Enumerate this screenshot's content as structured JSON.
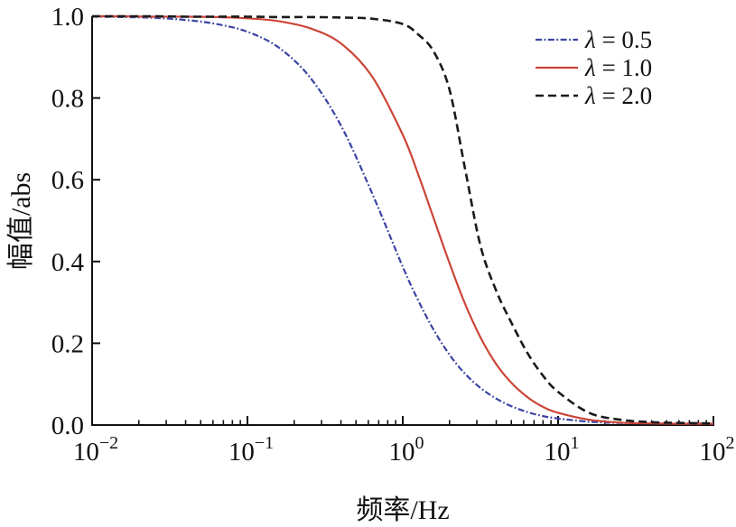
{
  "chart_data": {
    "type": "line",
    "title": "",
    "xlabel": "频率/Hz",
    "ylabel": "幅值/abs",
    "x_scale": "log",
    "xlim": [
      0.01,
      100
    ],
    "ylim": [
      0.0,
      1.0
    ],
    "grid": false,
    "legend_position": "upper right",
    "axis_color": "#111111",
    "x_ticks": [
      {
        "base": "10",
        "exp": "−2",
        "value": 0.01
      },
      {
        "base": "10",
        "exp": "−1",
        "value": 0.1
      },
      {
        "base": "10",
        "exp": "0",
        "value": 1
      },
      {
        "base": "10",
        "exp": "1",
        "value": 10
      },
      {
        "base": "10",
        "exp": "2",
        "value": 100
      }
    ],
    "y_ticks": [
      {
        "label": "0.0",
        "value": 0.0
      },
      {
        "label": "0.2",
        "value": 0.2
      },
      {
        "label": "0.4",
        "value": 0.4
      },
      {
        "label": "0.6",
        "value": 0.6
      },
      {
        "label": "0.8",
        "value": 0.8
      },
      {
        "label": "1.0",
        "value": 1.0
      }
    ],
    "x": [
      0.01,
      0.0158,
      0.0251,
      0.0398,
      0.0631,
      0.1,
      0.158,
      0.251,
      0.398,
      0.631,
      1,
      1.26,
      1.58,
      2.0,
      2.51,
      3.16,
      3.98,
      5.01,
      6.31,
      7.94,
      10,
      15.8,
      25.1,
      39.8,
      63.1,
      100
    ],
    "series": [
      {
        "name": "λ = 0.5",
        "legend_symbol": "λ",
        "legend_rest": " = 0.5",
        "color": "#3a44a4",
        "style": "dashdot",
        "values": [
          0.999,
          0.998,
          0.996,
          0.991,
          0.981,
          0.962,
          0.924,
          0.852,
          0.734,
          0.569,
          0.387,
          0.304,
          0.233,
          0.172,
          0.126,
          0.091,
          0.065,
          0.046,
          0.032,
          0.022,
          0.016,
          0.008,
          0.005,
          0.004,
          0.004,
          0.004
        ]
      },
      {
        "name": "λ = 1.0",
        "legend_symbol": "λ",
        "legend_rest": " = 1.0",
        "color": "#cc4538",
        "style": "solid",
        "values": [
          1.0,
          1.0,
          0.999,
          0.999,
          0.998,
          0.995,
          0.988,
          0.971,
          0.934,
          0.854,
          0.71,
          0.612,
          0.506,
          0.396,
          0.298,
          0.215,
          0.15,
          0.103,
          0.069,
          0.045,
          0.03,
          0.013,
          0.006,
          0.004,
          0.003,
          0.003
        ]
      },
      {
        "name": "λ = 2.0",
        "legend_symbol": "λ",
        "legend_rest": " = 2.0",
        "color": "#1a1a1a",
        "style": "dashed",
        "values": [
          1.0,
          1.0,
          1.0,
          0.999,
          0.999,
          0.999,
          0.998,
          0.998,
          0.997,
          0.994,
          0.981,
          0.955,
          0.914,
          0.82,
          0.63,
          0.44,
          0.33,
          0.25,
          0.178,
          0.122,
          0.081,
          0.03,
          0.013,
          0.007,
          0.005,
          0.004
        ]
      }
    ]
  }
}
